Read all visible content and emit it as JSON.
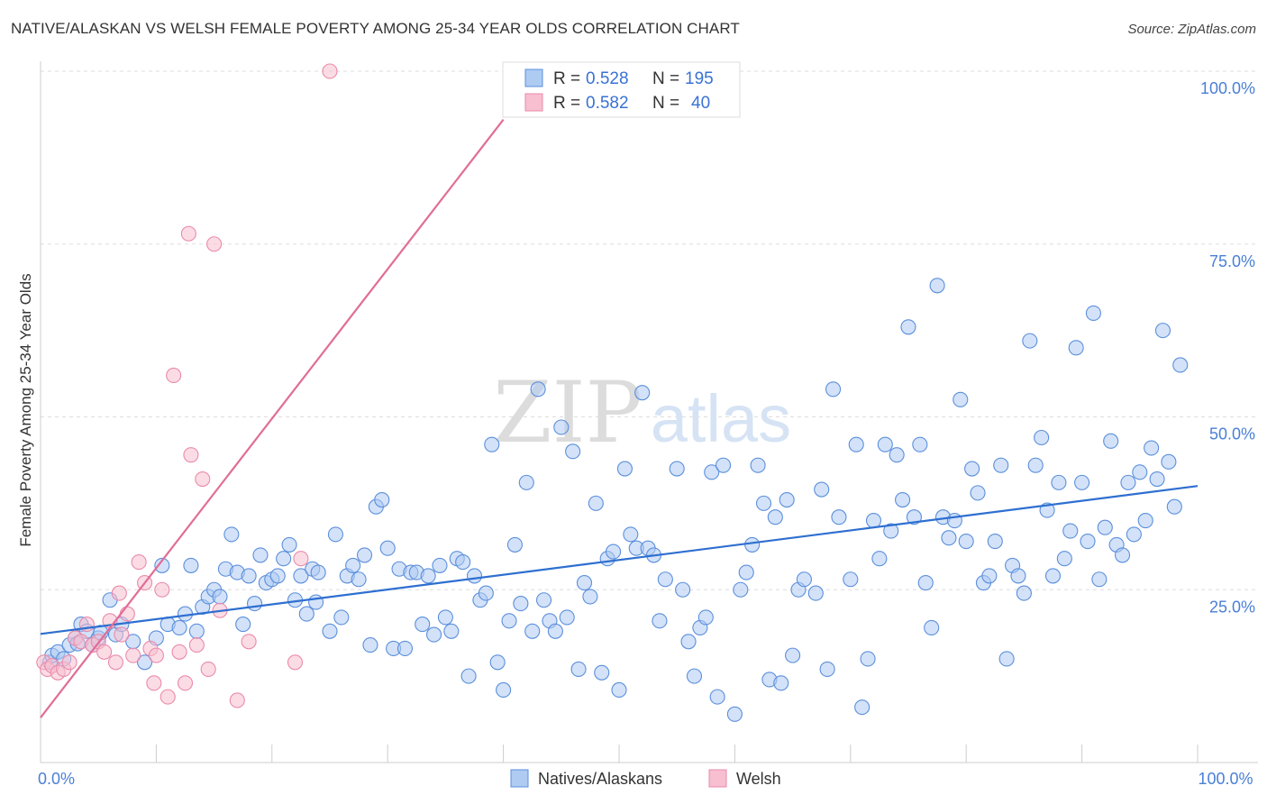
{
  "header": {
    "title": "NATIVE/ALASKAN VS WELSH FEMALE POVERTY AMONG 25-34 YEAR OLDS CORRELATION CHART",
    "source": "Source: ZipAtlas.com"
  },
  "watermark": {
    "zip": "ZIP",
    "atlas": "atlas"
  },
  "colors": {
    "natives_fill": "#aecbf2",
    "natives_stroke": "#5b8fdc",
    "natives_line": "#2e6fd0",
    "welsh_fill": "#f7bfd0",
    "welsh_stroke": "#ea8aab",
    "welsh_line": "#e06d97",
    "tick_label": "#4a7fd6",
    "grid": "#dddddd"
  },
  "chart_data": {
    "type": "scatter",
    "xlabel": "",
    "ylabel": "Female Poverty Among 25-34 Year Olds",
    "xlim": [
      0,
      100
    ],
    "ylim": [
      0,
      100
    ],
    "x_tick_labels": [
      {
        "value": 0,
        "label": "0.0%"
      },
      {
        "value": 100,
        "label": "100.0%"
      }
    ],
    "y_tick_labels": [
      {
        "value": 25,
        "label": "25.0%"
      },
      {
        "value": 50,
        "label": "50.0%"
      },
      {
        "value": 75,
        "label": "75.0%"
      },
      {
        "value": 100,
        "label": "100.0%"
      }
    ],
    "grid": "horizontal dashed",
    "legend_position": "top-center",
    "stats": [
      {
        "r_label": "R =",
        "r": "0.528",
        "n_label": "N =",
        "n": "195"
      },
      {
        "r_label": "R =",
        "r": "0.582",
        "n_label": "N =",
        "n": "40"
      }
    ],
    "series": [
      {
        "name": "Natives/Alaskans",
        "trend": {
          "x": [
            0,
            100
          ],
          "y": [
            18.6,
            40.0
          ]
        },
        "points": [
          [
            0.8,
            14.5
          ],
          [
            1,
            15.5
          ],
          [
            1.5,
            16
          ],
          [
            2,
            15
          ],
          [
            2.5,
            17
          ],
          [
            3,
            18
          ],
          [
            3.5,
            20
          ],
          [
            4,
            19
          ],
          [
            4.5,
            17
          ],
          [
            5,
            18
          ],
          [
            6,
            23.5
          ],
          [
            6.5,
            18.5
          ],
          [
            7,
            20
          ],
          [
            8,
            17.5
          ],
          [
            9,
            14.5
          ],
          [
            10,
            18
          ],
          [
            10.5,
            28.5
          ],
          [
            11,
            20
          ],
          [
            12,
            19.5
          ],
          [
            12.5,
            21.5
          ],
          [
            13,
            28.5
          ],
          [
            13.5,
            19
          ],
          [
            14,
            22.5
          ],
          [
            14.5,
            24
          ],
          [
            15,
            25
          ],
          [
            15.5,
            24
          ],
          [
            16,
            28
          ],
          [
            16.5,
            33
          ],
          [
            17,
            27.5
          ],
          [
            17.5,
            20
          ],
          [
            18,
            27
          ],
          [
            18.5,
            23
          ],
          [
            19,
            30
          ],
          [
            19.5,
            26
          ],
          [
            20,
            26.5
          ],
          [
            20.5,
            27
          ],
          [
            21,
            29.5
          ],
          [
            21.5,
            31.5
          ],
          [
            22,
            23.5
          ],
          [
            22.5,
            27
          ],
          [
            23,
            21.5
          ],
          [
            23.5,
            28
          ],
          [
            24,
            27.5
          ],
          [
            25,
            19
          ],
          [
            25.5,
            33
          ],
          [
            26,
            21
          ],
          [
            26.5,
            27
          ],
          [
            27,
            28.5
          ],
          [
            27.5,
            26.5
          ],
          [
            28,
            30
          ],
          [
            28.5,
            17
          ],
          [
            29,
            37
          ],
          [
            29.5,
            38
          ],
          [
            30,
            31
          ],
          [
            30.5,
            16.5
          ],
          [
            31,
            28
          ],
          [
            31.5,
            16.5
          ],
          [
            32,
            27.5
          ],
          [
            32.5,
            27.5
          ],
          [
            33,
            20
          ],
          [
            33.5,
            27
          ],
          [
            34,
            18.5
          ],
          [
            34.5,
            28.5
          ],
          [
            35,
            21
          ],
          [
            35.5,
            19
          ],
          [
            36,
            29.5
          ],
          [
            36.5,
            29
          ],
          [
            37,
            12.5
          ],
          [
            37.5,
            27
          ],
          [
            38,
            23.5
          ],
          [
            38.5,
            24.5
          ],
          [
            39,
            46
          ],
          [
            39.5,
            14.5
          ],
          [
            40,
            10.5
          ],
          [
            40.5,
            20.5
          ],
          [
            41,
            31.5
          ],
          [
            41.5,
            23
          ],
          [
            42,
            40.5
          ],
          [
            42.5,
            19
          ],
          [
            43,
            54
          ],
          [
            43.5,
            23.5
          ],
          [
            44,
            20.5
          ],
          [
            44.5,
            19
          ],
          [
            45,
            48.5
          ],
          [
            45.5,
            21
          ],
          [
            46,
            45
          ],
          [
            46.5,
            13.5
          ],
          [
            47,
            26
          ],
          [
            47.5,
            24
          ],
          [
            48,
            37.5
          ],
          [
            48.5,
            13
          ],
          [
            49,
            29.5
          ],
          [
            49.5,
            30.5
          ],
          [
            50,
            10.5
          ],
          [
            50.5,
            42.5
          ],
          [
            51,
            33
          ],
          [
            51.5,
            31
          ],
          [
            52,
            53.5
          ],
          [
            52.5,
            31
          ],
          [
            53,
            30
          ],
          [
            53.5,
            20.5
          ],
          [
            54,
            26.5
          ],
          [
            55,
            42.5
          ],
          [
            55.5,
            25
          ],
          [
            56,
            17.5
          ],
          [
            56.5,
            12.5
          ],
          [
            57,
            19.5
          ],
          [
            57.5,
            21
          ],
          [
            58,
            42
          ],
          [
            58.5,
            9.5
          ],
          [
            59,
            43
          ],
          [
            60,
            7
          ],
          [
            60.5,
            25
          ],
          [
            61,
            27.5
          ],
          [
            61.5,
            31.5
          ],
          [
            62,
            43
          ],
          [
            62.5,
            37.5
          ],
          [
            63,
            12
          ],
          [
            63.5,
            35.5
          ],
          [
            64,
            11.5
          ],
          [
            64.5,
            38
          ],
          [
            65,
            15.5
          ],
          [
            65.5,
            25
          ],
          [
            66,
            26.5
          ],
          [
            67,
            24.5
          ],
          [
            67.5,
            39.5
          ],
          [
            68,
            13.5
          ],
          [
            68.5,
            54
          ],
          [
            69,
            35.5
          ],
          [
            70,
            26.5
          ],
          [
            70.5,
            46
          ],
          [
            71,
            8
          ],
          [
            71.5,
            15
          ],
          [
            72,
            35
          ],
          [
            72.5,
            29.5
          ],
          [
            73,
            46
          ],
          [
            73.5,
            33.5
          ],
          [
            74,
            44.5
          ],
          [
            74.5,
            38
          ],
          [
            75,
            63
          ],
          [
            75.5,
            35.5
          ],
          [
            76,
            46
          ],
          [
            76.5,
            26
          ],
          [
            77,
            19.5
          ],
          [
            77.5,
            69
          ],
          [
            78,
            35.5
          ],
          [
            78.5,
            32.5
          ],
          [
            79,
            35
          ],
          [
            79.5,
            52.5
          ],
          [
            80,
            32
          ],
          [
            80.5,
            42.5
          ],
          [
            81,
            39
          ],
          [
            81.5,
            26
          ],
          [
            82,
            27
          ],
          [
            82.5,
            32
          ],
          [
            83,
            43
          ],
          [
            83.5,
            15
          ],
          [
            84,
            28.5
          ],
          [
            84.5,
            27
          ],
          [
            85,
            24.5
          ],
          [
            85.5,
            61
          ],
          [
            86,
            43
          ],
          [
            86.5,
            47
          ],
          [
            87,
            36.5
          ],
          [
            87.5,
            27
          ],
          [
            88,
            40.5
          ],
          [
            88.5,
            29.5
          ],
          [
            89,
            33.5
          ],
          [
            89.5,
            60
          ],
          [
            90,
            40.5
          ],
          [
            90.5,
            32
          ],
          [
            91,
            65
          ],
          [
            91.5,
            26.5
          ],
          [
            92,
            34
          ],
          [
            92.5,
            46.5
          ],
          [
            93,
            31.5
          ],
          [
            93.5,
            30
          ],
          [
            94,
            40.5
          ],
          [
            94.5,
            33
          ],
          [
            95,
            42
          ],
          [
            95.5,
            35
          ],
          [
            96,
            45.5
          ],
          [
            96.5,
            41
          ],
          [
            97,
            62.5
          ],
          [
            97.5,
            43.5
          ],
          [
            98,
            37
          ],
          [
            98.5,
            57.5
          ],
          [
            3.2,
            17.2
          ],
          [
            5.2,
            18.8
          ],
          [
            23.8,
            23.2
          ]
        ]
      },
      {
        "name": "Welsh",
        "trend": {
          "x": [
            0,
            40
          ],
          "y": [
            6.5,
            93.0
          ]
        },
        "points": [
          [
            0.3,
            14.5
          ],
          [
            0.6,
            13.5
          ],
          [
            1,
            14
          ],
          [
            1.5,
            13
          ],
          [
            2,
            13.5
          ],
          [
            2.5,
            14.5
          ],
          [
            3,
            18
          ],
          [
            3.5,
            17.5
          ],
          [
            4,
            20
          ],
          [
            4.5,
            17
          ],
          [
            5,
            17.5
          ],
          [
            5.5,
            16
          ],
          [
            6,
            20.5
          ],
          [
            6.5,
            14.5
          ],
          [
            6.8,
            24.5
          ],
          [
            7,
            18.5
          ],
          [
            7.5,
            21.5
          ],
          [
            8,
            15.5
          ],
          [
            8.5,
            29
          ],
          [
            9,
            26
          ],
          [
            9.5,
            16.5
          ],
          [
            9.8,
            11.5
          ],
          [
            10,
            15.5
          ],
          [
            10.5,
            25
          ],
          [
            11,
            9.5
          ],
          [
            11.5,
            56
          ],
          [
            12,
            16
          ],
          [
            12.5,
            11.5
          ],
          [
            12.8,
            76.5
          ],
          [
            13,
            44.5
          ],
          [
            13.5,
            17
          ],
          [
            14,
            41
          ],
          [
            14.5,
            13.5
          ],
          [
            15,
            75
          ],
          [
            15.5,
            22
          ],
          [
            17,
            9
          ],
          [
            18,
            17.5
          ],
          [
            22,
            14.5
          ],
          [
            22.5,
            29.5
          ],
          [
            25,
            100
          ]
        ]
      }
    ]
  }
}
